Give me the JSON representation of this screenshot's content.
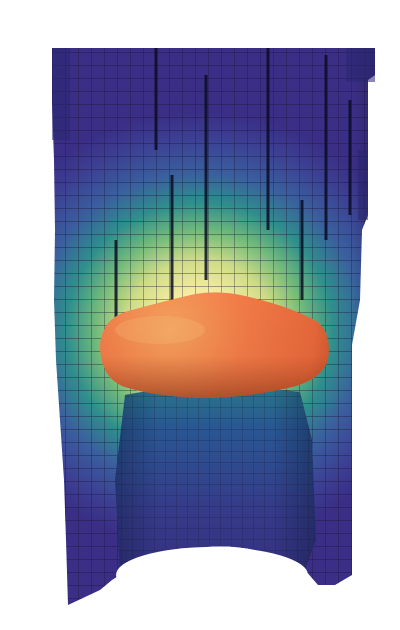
{
  "scene": {
    "background_color": "#ffffff",
    "colormap": [
      "#3c2e8a",
      "#3a4f9c",
      "#2f6fa0",
      "#2e8e8e",
      "#4aa982",
      "#8cc47a",
      "#d2dd86",
      "#f4eca2",
      "#fbf3c2"
    ],
    "blob_color": "#f26a3e",
    "blob_highlight": "#f6a45e",
    "grid_line_color": "#1a1430"
  }
}
